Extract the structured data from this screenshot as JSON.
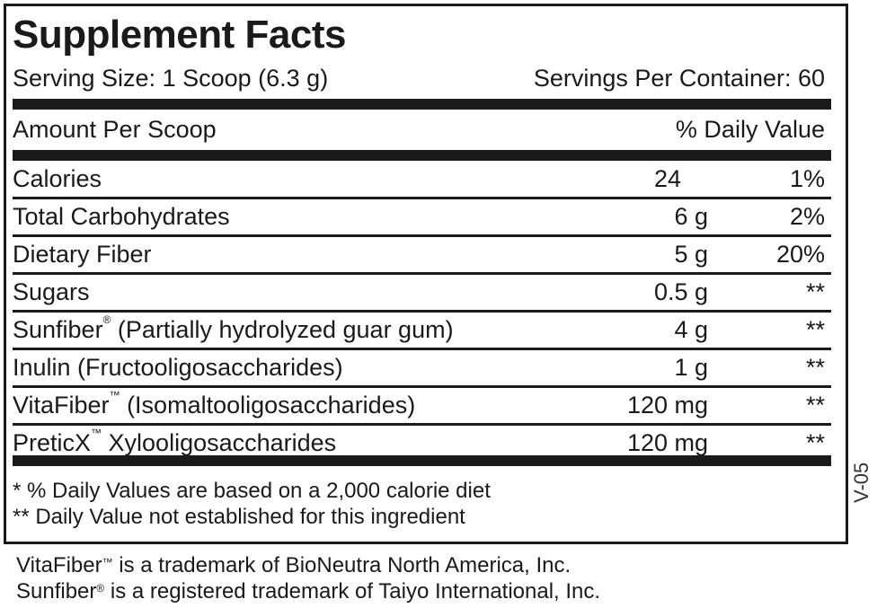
{
  "title": "Supplement Facts",
  "serving_size": "Serving Size: 1 Scoop (6.3 g)",
  "servings_per_container": "Servings Per Container: 60",
  "amount_per": "Amount Per Scoop",
  "daily_value_header": "% Daily Value",
  "rows": [
    {
      "name": "Calories",
      "mark": "",
      "suffix": "",
      "amount": "24",
      "dv": "1%"
    },
    {
      "name": "Total Carbohydrates",
      "mark": "",
      "suffix": "",
      "amount": "6 g",
      "dv": "2%"
    },
    {
      "name": "Dietary Fiber",
      "mark": "",
      "suffix": "",
      "amount": "5 g",
      "dv": "20%"
    },
    {
      "name": "Sugars",
      "mark": "",
      "suffix": "",
      "amount": "0.5 g",
      "dv": "**"
    },
    {
      "name": "Sunfiber",
      "mark": "®",
      "suffix": " (Partially hydrolyzed guar gum)",
      "amount": "4 g",
      "dv": "**"
    },
    {
      "name": "Inulin (Fructooligosaccharides)",
      "mark": "",
      "suffix": "",
      "amount": "1 g",
      "dv": "**"
    },
    {
      "name": "VitaFiber",
      "mark": "™",
      "suffix": " (Isomaltooligosaccharides)",
      "amount": "120 mg",
      "dv": "**"
    },
    {
      "name": "PreticX",
      "mark": "™",
      "suffix": " Xylooligosaccharides",
      "amount": "120 mg",
      "dv": "**"
    }
  ],
  "footnotes": [
    "*  % Daily Values are based on a 2,000 calorie diet",
    "** Daily Value not established for this ingredient"
  ],
  "trademarks": [
    {
      "name": "VitaFiber",
      "mark": "™",
      "text": " is a trademark of BioNeutra North America, Inc."
    },
    {
      "name": "Sunfiber",
      "mark": "®",
      "text": " is a registered trademark of Taiyo International, Inc."
    }
  ],
  "code": "V-05"
}
